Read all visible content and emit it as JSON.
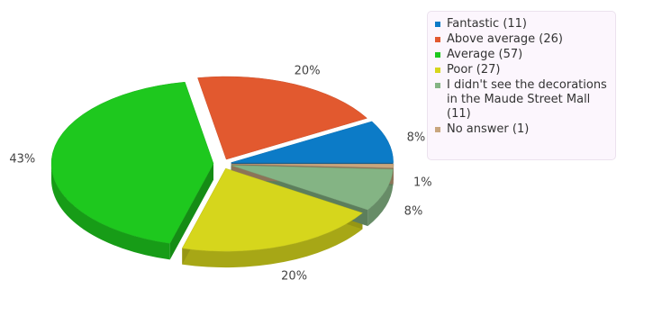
{
  "chart_data": {
    "type": "pie",
    "style": "3d-exploded",
    "slices": [
      {
        "name": "Fantastic",
        "count": 11,
        "percent_label": "8%",
        "color": "#0c7bc7"
      },
      {
        "name": "Above average",
        "count": 26,
        "percent_label": "20%",
        "color": "#e2592f"
      },
      {
        "name": "Average",
        "count": 57,
        "percent_label": "43%",
        "color": "#1ec81e"
      },
      {
        "name": "Poor",
        "count": 27,
        "percent_label": "20%",
        "color": "#d6d61c"
      },
      {
        "name": "I didn't see the decorations in the Maude Street Mall",
        "count": 11,
        "percent_label": "8%",
        "color": "#84b484"
      },
      {
        "name": "No answer",
        "count": 1,
        "percent_label": "1%",
        "color": "#c8a67e"
      }
    ],
    "legend_placement": "top-right"
  },
  "legend": {
    "items": [
      "Fantastic (11)",
      "Above average (26)",
      "Average (57)",
      "Poor (27)",
      "I didn't see the decorations in the Maude Street Mall (11)",
      "No answer (1)"
    ]
  }
}
